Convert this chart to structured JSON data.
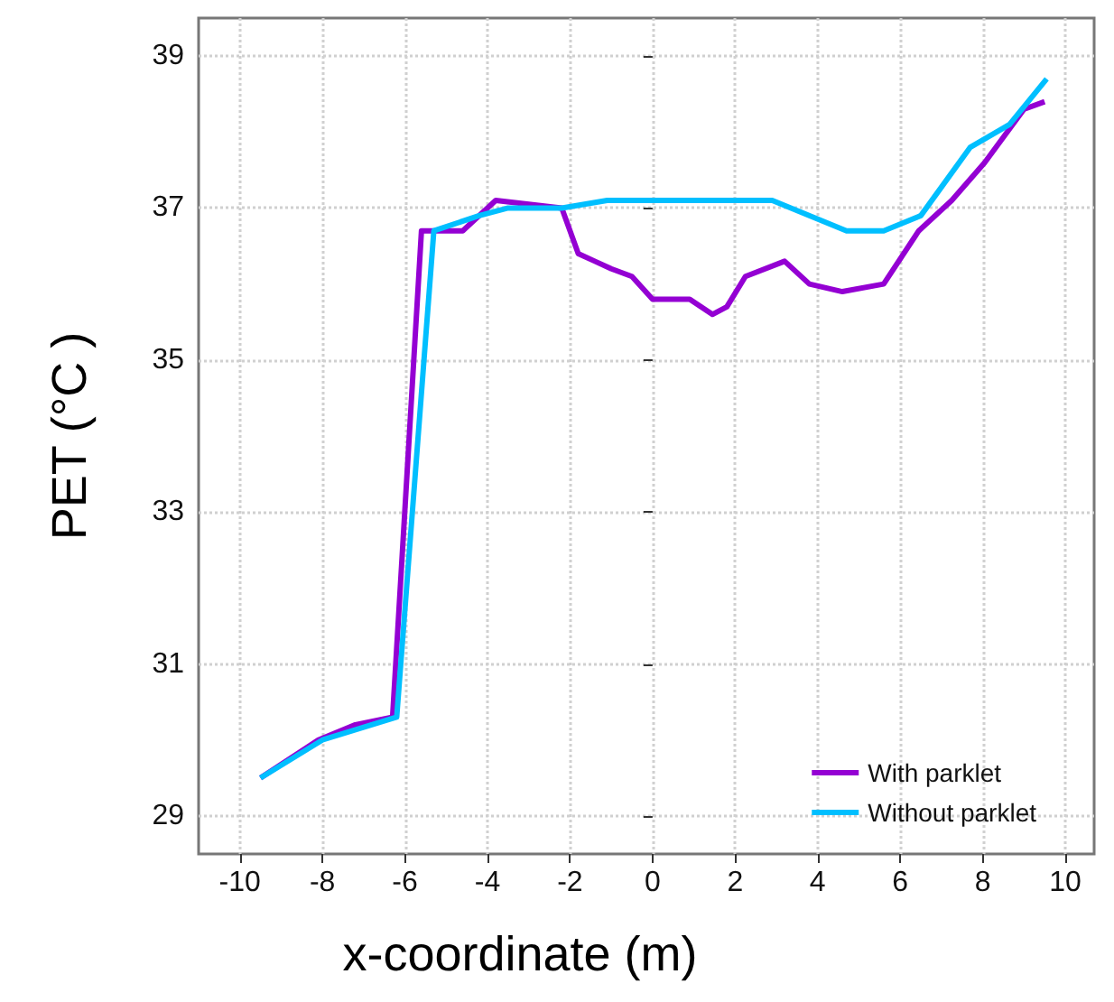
{
  "chart_data": {
    "type": "line",
    "xlabel": "x-coordinate (m)",
    "ylabel": "PET (°C )",
    "xlim": [
      -11,
      10.7
    ],
    "ylim": [
      28.5,
      39.5
    ],
    "xticks": [
      -10,
      -8,
      -6,
      -4,
      -2,
      0,
      2,
      4,
      6,
      8,
      10
    ],
    "yticks": [
      29,
      31,
      33,
      35,
      37,
      39
    ],
    "grid": true,
    "legend": "bottom right",
    "marker": "none",
    "line_style": "solid",
    "series": [
      {
        "name": "With parklet",
        "color": "#9400d3",
        "x": [
          -9.5,
          -8.1,
          -7.2,
          -6.3,
          -5.6,
          -4.6,
          -3.8,
          -2.2,
          -1.8,
          -1.4,
          -1.0,
          -0.5,
          0,
          0.9,
          1.45,
          1.8,
          2.25,
          3.2,
          3.8,
          4.6,
          5.6,
          6.45,
          7.25,
          8.05,
          9.0,
          9.5
        ],
        "values": [
          29.5,
          30.0,
          30.2,
          30.3,
          36.7,
          36.7,
          37.1,
          37.0,
          36.4,
          36.3,
          36.2,
          36.1,
          35.8,
          35.8,
          35.6,
          35.7,
          36.1,
          36.3,
          36.0,
          35.9,
          36.0,
          36.7,
          37.1,
          37.6,
          38.3,
          38.4
        ]
      },
      {
        "name": "Without parklet",
        "color": "#00bfff",
        "x": [
          -9.5,
          -8.0,
          -6.2,
          -5.3,
          -4.2,
          -3.5,
          -2.2,
          -1.1,
          2.9,
          4.7,
          5.6,
          6.5,
          7.7,
          8.65,
          9.55
        ],
        "values": [
          29.5,
          30.0,
          30.3,
          36.7,
          36.9,
          37.0,
          37.0,
          37.1,
          37.1,
          36.7,
          36.7,
          36.9,
          37.8,
          38.1,
          38.7
        ]
      }
    ]
  }
}
